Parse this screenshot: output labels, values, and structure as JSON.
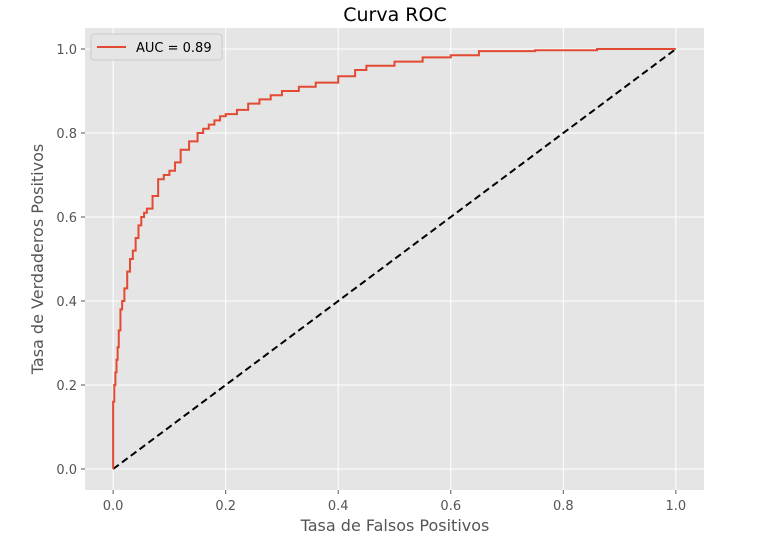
{
  "chart_data": {
    "type": "line",
    "title": "Curva ROC",
    "xlabel": "Tasa de Falsos Positivos",
    "ylabel": "Tasa de Verdaderos Positivos",
    "xlim": [
      -0.05,
      1.05
    ],
    "ylim": [
      -0.05,
      1.05
    ],
    "xticks": [
      "0.0",
      "0.2",
      "0.4",
      "0.6",
      "0.8",
      "1.0"
    ],
    "yticks": [
      "0.0",
      "0.2",
      "0.4",
      "0.6",
      "0.8",
      "1.0"
    ],
    "grid": true,
    "legend": {
      "placement": "top-left",
      "entries": [
        "AUC = 0.89"
      ]
    },
    "colors": {
      "background": "#e5e5e5",
      "grid": "#ffffff",
      "roc": "#e24a33",
      "diagonal": "#000000"
    },
    "series": [
      {
        "name": "AUC = 0.89",
        "style": "solid",
        "x": [
          0.0,
          0.0,
          0.002,
          0.004,
          0.006,
          0.008,
          0.01,
          0.013,
          0.016,
          0.02,
          0.025,
          0.03,
          0.035,
          0.04,
          0.045,
          0.05,
          0.055,
          0.06,
          0.07,
          0.08,
          0.09,
          0.1,
          0.11,
          0.12,
          0.135,
          0.15,
          0.16,
          0.17,
          0.18,
          0.19,
          0.2,
          0.22,
          0.24,
          0.26,
          0.28,
          0.3,
          0.33,
          0.36,
          0.4,
          0.43,
          0.45,
          0.5,
          0.55,
          0.6,
          0.65,
          0.75,
          0.86,
          1.0
        ],
        "y": [
          0.0,
          0.16,
          0.2,
          0.23,
          0.26,
          0.29,
          0.33,
          0.38,
          0.4,
          0.43,
          0.47,
          0.5,
          0.52,
          0.55,
          0.58,
          0.6,
          0.61,
          0.62,
          0.65,
          0.69,
          0.7,
          0.71,
          0.73,
          0.76,
          0.78,
          0.8,
          0.81,
          0.82,
          0.83,
          0.84,
          0.845,
          0.855,
          0.87,
          0.88,
          0.89,
          0.9,
          0.91,
          0.92,
          0.935,
          0.95,
          0.96,
          0.97,
          0.98,
          0.985,
          0.995,
          0.997,
          1.0,
          1.0
        ]
      },
      {
        "style": "dashed",
        "x": [
          0.0,
          1.0
        ],
        "y": [
          0.0,
          1.0
        ]
      }
    ]
  }
}
